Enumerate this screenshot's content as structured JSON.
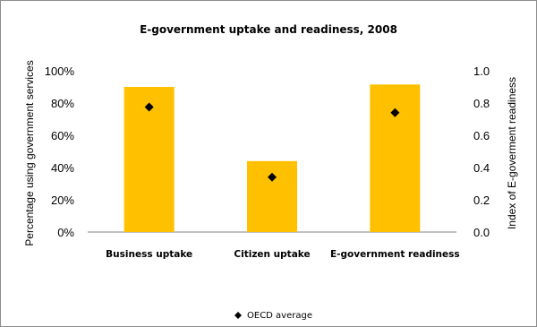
{
  "chart_data": {
    "type": "bar",
    "title": "E-government uptake and readiness, 2008",
    "categories": [
      "Business uptake",
      "Citizen uptake",
      "E-government readiness"
    ],
    "series": [
      {
        "name": "",
        "type": "bar",
        "axis": "left",
        "values": [
          0.9,
          0.44,
          0.915
        ],
        "color": "#ffc000"
      },
      {
        "name": "OECD average",
        "type": "scatter",
        "marker": "diamond",
        "axis": "left",
        "values": [
          0.775,
          0.34,
          0.74
        ],
        "color": "#000000"
      }
    ],
    "ylabel": "Percentage using government services",
    "ylabel_right": "Index of E-goverment readiness",
    "ylim": [
      0,
      1
    ],
    "ylim_right": [
      0,
      1
    ],
    "y_ticks": [
      "0%",
      "20%",
      "40%",
      "60%",
      "80%",
      "100%"
    ],
    "y_ticks_right": [
      "0.0",
      "0.2",
      "0.4",
      "0.6",
      "0.8",
      "1.0"
    ],
    "grid": false,
    "legend": {
      "position": "bottom",
      "entries": [
        "OECD average"
      ]
    }
  }
}
